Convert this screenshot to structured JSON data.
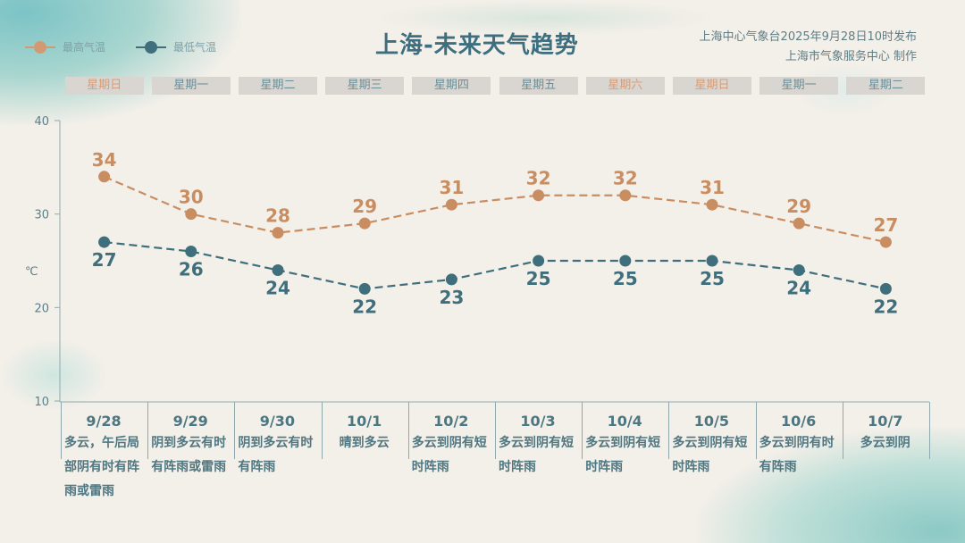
{
  "header": {
    "title": "上海-未来天气趋势",
    "publisher": "上海中心气象台2025年9月28日10时发布",
    "producer": "上海市气象服务中心 制作"
  },
  "legend": {
    "high": "最高气温",
    "low": "最低气温"
  },
  "colors": {
    "high": "#c98d62",
    "low": "#3f6f7c",
    "weekend": "#d69c76",
    "text": "#4c7682"
  },
  "weekdays": [
    {
      "label": "星期日",
      "weekend": true
    },
    {
      "label": "星期一",
      "weekend": false
    },
    {
      "label": "星期二",
      "weekend": false
    },
    {
      "label": "星期三",
      "weekend": false
    },
    {
      "label": "星期四",
      "weekend": false
    },
    {
      "label": "星期五",
      "weekend": false
    },
    {
      "label": "星期六",
      "weekend": true
    },
    {
      "label": "星期日",
      "weekend": true
    },
    {
      "label": "星期一",
      "weekend": false
    },
    {
      "label": "星期二",
      "weekend": false
    }
  ],
  "days": [
    {
      "date": "9/28",
      "weather": "多云，午后局部阴有时有阵雨或雷雨"
    },
    {
      "date": "9/29",
      "weather": "阴到多云有时有阵雨或雷雨"
    },
    {
      "date": "9/30",
      "weather": "阴到多云有时有阵雨"
    },
    {
      "date": "10/1",
      "weather": "晴到多云"
    },
    {
      "date": "10/2",
      "weather": "多云到阴有短时阵雨"
    },
    {
      "date": "10/3",
      "weather": "多云到阴有短时阵雨"
    },
    {
      "date": "10/4",
      "weather": "多云到阴有短时阵雨"
    },
    {
      "date": "10/5",
      "weather": "多云到阴有短时阵雨"
    },
    {
      "date": "10/6",
      "weather": "多云到阴有时有阵雨"
    },
    {
      "date": "10/7",
      "weather": "多云到阴"
    }
  ],
  "chart_data": {
    "type": "line",
    "categories": [
      "9/28",
      "9/29",
      "9/30",
      "10/1",
      "10/2",
      "10/3",
      "10/4",
      "10/5",
      "10/6",
      "10/7"
    ],
    "series": [
      {
        "name": "最高气温",
        "values": [
          34,
          30,
          28,
          29,
          31,
          32,
          32,
          31,
          29,
          27
        ]
      },
      {
        "name": "最低气温",
        "values": [
          27,
          26,
          24,
          22,
          23,
          25,
          25,
          25,
          24,
          22
        ]
      }
    ],
    "ylabel": "℃",
    "ylim": [
      10,
      40
    ],
    "yticks": [
      10,
      20,
      30,
      40
    ],
    "line_style": "dashed",
    "grid": false,
    "legend": "top-left"
  }
}
